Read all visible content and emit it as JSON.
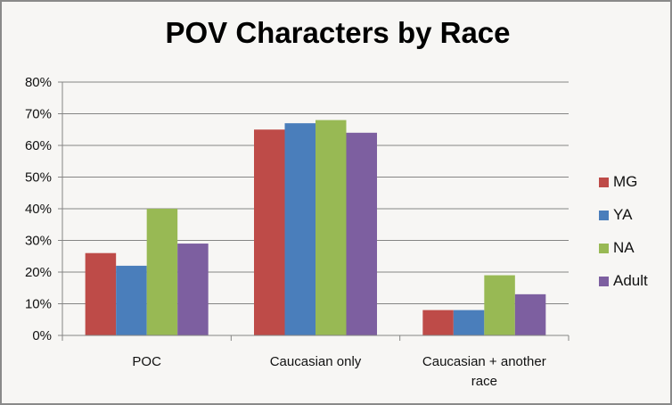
{
  "chart_data": {
    "type": "bar",
    "title": "POV Characters by Race",
    "xlabel": "",
    "ylabel": "",
    "categories": [
      "POC",
      "Caucasian only",
      "Caucasian + another race"
    ],
    "category_lines": [
      [
        "POC"
      ],
      [
        "Caucasian only"
      ],
      [
        "Caucasian + another",
        "race"
      ]
    ],
    "series": [
      {
        "name": "MG",
        "color": "#be4b48",
        "values": [
          26,
          65,
          8
        ]
      },
      {
        "name": "YA",
        "color": "#4a7ebb",
        "values": [
          22,
          67,
          8
        ]
      },
      {
        "name": "NA",
        "color": "#98b954",
        "values": [
          40,
          68,
          19
        ]
      },
      {
        "name": "Adult",
        "color": "#7d5fa0",
        "values": [
          29,
          64,
          13
        ]
      }
    ],
    "ylim": [
      0,
      80
    ],
    "yticks": [
      "0%",
      "10%",
      "20%",
      "30%",
      "40%",
      "50%",
      "60%",
      "70%",
      "80%"
    ],
    "grid": true,
    "legend": "right"
  }
}
